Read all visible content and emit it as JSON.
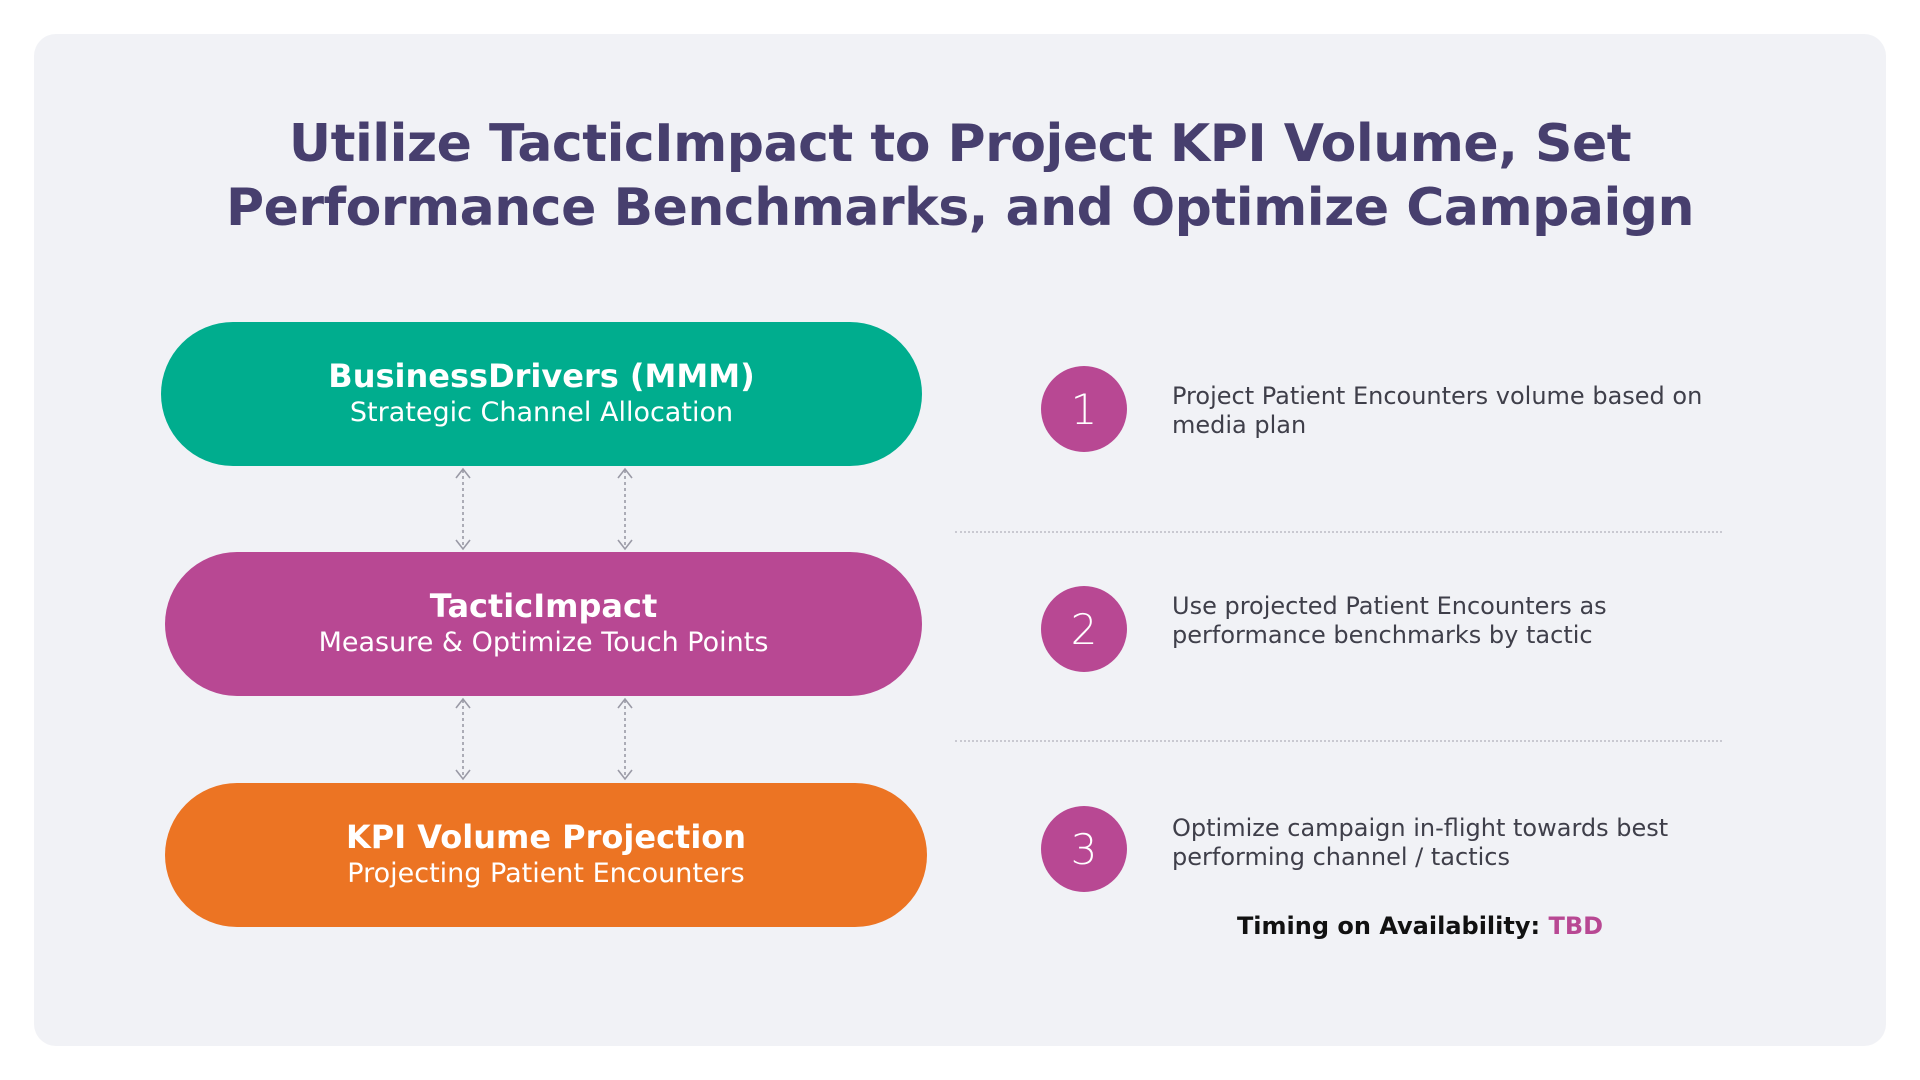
{
  "title": {
    "line1": "Utilize TacticImpact to Project KPI Volume, Set",
    "line2": "Performance Benchmarks, and Optimize Campaign"
  },
  "pills": [
    {
      "title": "BusinessDrivers (MMM)",
      "subtitle": "Strategic Channel Allocation",
      "color": "#00ad8e"
    },
    {
      "title": "TacticImpact",
      "subtitle": "Measure & Optimize Touch Points",
      "color": "#b84893"
    },
    {
      "title": "KPI Volume Projection",
      "subtitle": "Projecting Patient Encounters",
      "color": "#ec7423"
    }
  ],
  "steps": [
    {
      "number": "1",
      "line1": "Project Patient Encounters volume based on",
      "line2": "media plan"
    },
    {
      "number": "2",
      "line1": "Use projected Patient Encounters as",
      "line2": "performance benchmarks by tactic"
    },
    {
      "number": "3",
      "line1": "Optimize campaign in-flight towards best",
      "line2": "performing channel / tactics"
    }
  ],
  "timing": {
    "label": "Timing on Availability:",
    "value": "TBD"
  },
  "colors": {
    "title": "#473f6e",
    "accent": "#b84893",
    "background": "#f1f2f6"
  },
  "icons": {
    "connector": "bidirectional-dotted-arrow-icon"
  }
}
